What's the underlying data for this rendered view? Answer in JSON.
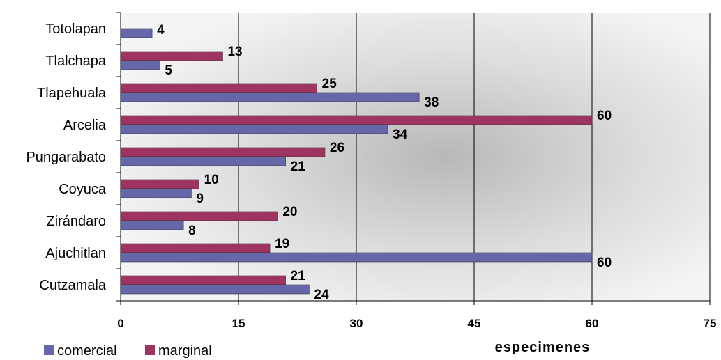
{
  "chart_data": {
    "type": "bar",
    "orientation": "horizontal",
    "categories": [
      "Totolapan",
      "Tlalchapa",
      "Tlapehuala",
      "Arcelia",
      "Pungarabato",
      "Coyuca",
      "Zirándaro",
      "Ajuchitlan",
      "Cutzamala"
    ],
    "series": [
      {
        "name": "comercial",
        "color": "#6666aa",
        "values": [
          4,
          5,
          38,
          34,
          21,
          9,
          8,
          60,
          24
        ]
      },
      {
        "name": "marginal",
        "color": "#9e3462",
        "values": [
          null,
          13,
          25,
          60,
          26,
          10,
          20,
          19,
          21
        ]
      }
    ],
    "xlabel": "especimenes",
    "ylabel": "",
    "title": "",
    "xlim": [
      0,
      75
    ],
    "xticks": [
      "0",
      "15",
      "30",
      "45",
      "60",
      "75"
    ],
    "grid": "vertical",
    "legend": "bottom-left",
    "data_labels": true
  }
}
